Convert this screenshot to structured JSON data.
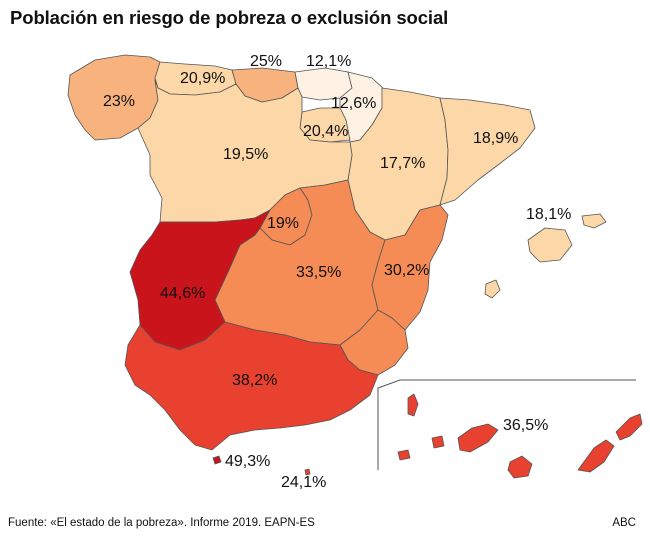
{
  "title": "Población en riesgo de pobreza o exclusión social",
  "source": "Fuente: «El estado de la pobreza». Informe 2019. EAPN-ES",
  "brand": "ABC",
  "colors": {
    "very_light": "#fdf1e4",
    "light": "#fcd7a8",
    "medium": "#f8b27e",
    "orange": "#f58b55",
    "dark_orange": "#f06a45",
    "red": "#e8412f",
    "dark_red": "#c9141b",
    "border": "#555555"
  },
  "regions": [
    {
      "name": "Galicia",
      "label": "23%",
      "value": 23
    },
    {
      "name": "Asturias",
      "label": "20,9%",
      "value": 20.9
    },
    {
      "name": "Cantabria",
      "label": "25%",
      "value": 25
    },
    {
      "name": "País Vasco",
      "label": "12,1%",
      "value": 12.1
    },
    {
      "name": "Navarra",
      "label": "12,6%",
      "value": 12.6
    },
    {
      "name": "La Rioja",
      "label": "20,4%",
      "value": 20.4
    },
    {
      "name": "Aragón",
      "label": "17,7%",
      "value": 17.7
    },
    {
      "name": "Cataluña",
      "label": "18,9%",
      "value": 18.9
    },
    {
      "name": "Castilla y León",
      "label": "19,5%",
      "value": 19.5
    },
    {
      "name": "Madrid",
      "label": "19%",
      "value": 19
    },
    {
      "name": "Castilla-La Mancha",
      "label": "33,5%",
      "value": 33.5
    },
    {
      "name": "Comunidad Valenciana",
      "label": "30,2%",
      "value": 30.2
    },
    {
      "name": "Baleares",
      "label": "18,1%",
      "value": 18.1
    },
    {
      "name": "Extremadura",
      "label": "44,6%",
      "value": 44.6
    },
    {
      "name": "Andalucía",
      "label": "38,2%",
      "value": 38.2
    },
    {
      "name": "Canarias",
      "label": "36,5%",
      "value": 36.5
    },
    {
      "name": "Ceuta",
      "label": "49,3%",
      "value": 49.3
    },
    {
      "name": "Melilla",
      "label": "24,1%",
      "value": 24.1
    },
    {
      "name": "Murcia",
      "label": "",
      "value": null
    }
  ]
}
